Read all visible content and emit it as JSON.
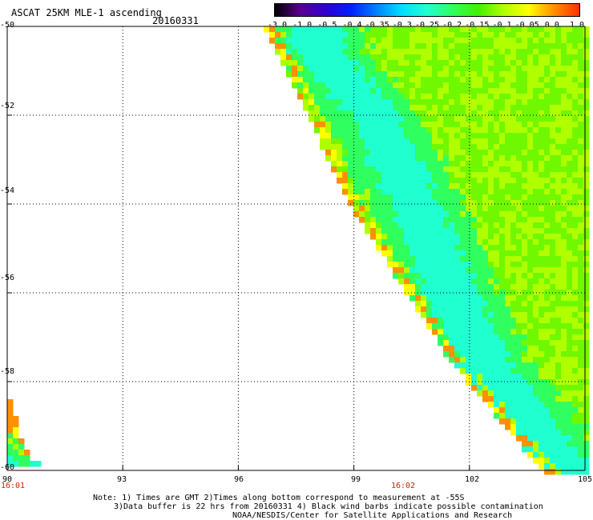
{
  "header": {
    "title": "ASCAT 25KM MLE-1 ascending",
    "date": "20160331"
  },
  "colorbar": {
    "labels": [
      "-3.0",
      "-1.0",
      "-0.5",
      "-0.4",
      "-0.35",
      "-0.3",
      "-0.25",
      "-0.2",
      "-0.15",
      "-0.1",
      "-0.05",
      "0.0",
      "1.0"
    ],
    "colors": [
      "#000000",
      "#5a0090",
      "#3000d0",
      "#0020ff",
      "#0080ff",
      "#00e0ff",
      "#20ffd0",
      "#30ff60",
      "#40f000",
      "#b0ff00",
      "#ffff00",
      "#ff9000",
      "#ff3000"
    ]
  },
  "axes": {
    "lat_labels": [
      "-50",
      "-52",
      "-54",
      "-56",
      "-58",
      "-60"
    ],
    "lon_labels": [
      "90",
      "93",
      "96",
      "99",
      "102",
      "105"
    ],
    "times": [
      "16:01",
      "16:02"
    ]
  },
  "chart_data": {
    "type": "heatmap",
    "title": "ASCAT 25KM MLE-1 ascending",
    "xlim": [
      90,
      105
    ],
    "ylim": [
      -60,
      -50
    ],
    "x_ticks": [
      90,
      93,
      96,
      99,
      102,
      105
    ],
    "y_ticks": [
      -50,
      -52,
      -54,
      -56,
      -58,
      -60
    ],
    "grid": true,
    "swath_edge": [
      [
        96.8,
        -50
      ],
      [
        99,
        -54
      ],
      [
        101.6,
        -57.5
      ],
      [
        104,
        -60
      ]
    ],
    "low_valley": [
      [
        98.0,
        -50.5
      ],
      [
        99.5,
        -52
      ],
      [
        100.8,
        -54.5
      ],
      [
        102.3,
        -57.5
      ],
      [
        104.5,
        -60
      ]
    ],
    "colors": {
      "high": "#b0ff00",
      "mid": "#30ff60",
      "low": "#20ffd0",
      "edge": "#ff9000"
    }
  },
  "footer": {
    "line1": "Note: 1) Times are GMT 2)Times along bottom correspond to measurement at -55S",
    "line2": "3)Data buffer is 22 hrs from 20160331 4) Black wind barbs indicate possible contamination",
    "line3": "NOAA/NESDIS/Center for Satellite Applications and Research"
  }
}
